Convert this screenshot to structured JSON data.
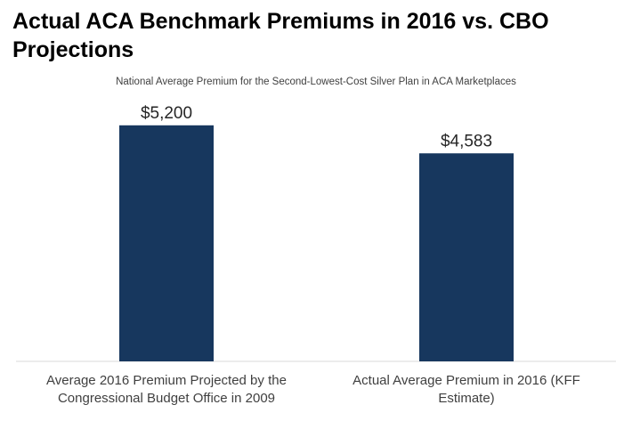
{
  "title": "Actual ACA Benchmark Premiums in 2016 vs. CBO Projections",
  "subtitle": "National Average Premium for the Second-Lowest-Cost Silver Plan in ACA Marketplaces",
  "chart_data": {
    "type": "bar",
    "title": "Actual ACA Benchmark Premiums in 2016 vs. CBO Projections",
    "subtitle": "National Average Premium for the Second-Lowest-Cost Silver Plan in ACA Marketplaces",
    "categories": [
      "Average 2016 Premium Projected by the Congressional Budget Office in 2009",
      "Actual Average Premium in 2016 (KFF Estimate)"
    ],
    "values": [
      5200,
      4583
    ],
    "data_labels": [
      "$5,200",
      "$4,583"
    ],
    "xlabel": "",
    "ylabel": "",
    "ylim": [
      0,
      6000
    ],
    "grid": false,
    "legend": "none",
    "bar_color": "#17375e",
    "axis_color": "#d9d9d9"
  }
}
